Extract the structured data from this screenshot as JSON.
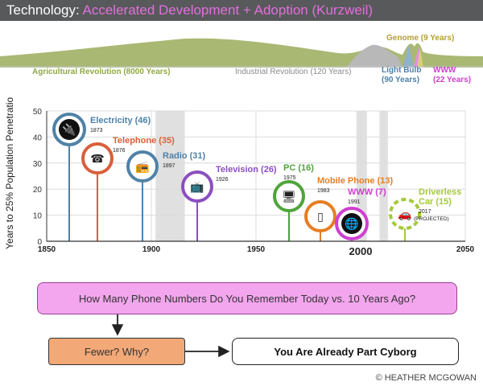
{
  "header": {
    "title_prefix": "Technology: ",
    "title_main": "Accelerated Development + Adoption (Kurzweil)"
  },
  "eras": {
    "agricultural": "Agricultural Revolution (8000 Years)",
    "industrial": "Industrial Revolution (120 Years)",
    "genome": "Genome (9 Years)",
    "lightbulb_line1": "Light Bulb",
    "lightbulb_line2": "(90 Years)",
    "www_line1": "WWW",
    "www_line2": "(22 Years)"
  },
  "colors": {
    "header_bg": "#58595b",
    "title_accent": "#e16fdc",
    "agri": "#8fa846",
    "industrial": "#8a8a8a",
    "genome": "#b5a132",
    "lightbulb": "#4f82a7",
    "www": "#cf3fcf",
    "mountain": "#a9b873"
  },
  "chart_data": {
    "type": "scatter",
    "ylabel": "Years to 25% Population Penetration",
    "xlim": [
      1850,
      2050
    ],
    "ylim": [
      0,
      50
    ],
    "x_ticks": [
      "1850",
      "1900",
      "1950",
      "2000",
      "2050"
    ],
    "y_ticks": [
      "0",
      "10",
      "20",
      "30",
      "40",
      "50"
    ],
    "grid": true,
    "points": [
      {
        "name": "Electricity",
        "value_label": "(46)",
        "year": "1873",
        "x": 1873,
        "y": 46,
        "color": "#4f82a7",
        "icon": "plug-icon"
      },
      {
        "name": "Telephone",
        "value_label": "(35)",
        "year": "1876",
        "x": 1876,
        "y": 35,
        "color": "#d95f3b",
        "icon": "phone-icon"
      },
      {
        "name": "Radio",
        "value_label": "(31)",
        "year": "1897",
        "x": 1897,
        "y": 31,
        "color": "#4f82a7",
        "icon": "radio-icon"
      },
      {
        "name": "Television",
        "value_label": "(26)",
        "year": "1926",
        "x": 1926,
        "y": 26,
        "color": "#8b4fbf",
        "icon": "tv-icon"
      },
      {
        "name": "PC",
        "value_label": "(16)",
        "year": "1975",
        "x": 1975,
        "y": 16,
        "color": "#4fa53a",
        "icon": "computer-icon"
      },
      {
        "name": "Mobile Phone",
        "value_label": "(13)",
        "year": "1983",
        "x": 1983,
        "y": 13,
        "color": "#e67e22",
        "icon": "mobile-phone-icon"
      },
      {
        "name": "WWW",
        "value_label": "(7)",
        "year": "1991",
        "x": 1991,
        "y": 7,
        "color": "#cf3fcf",
        "icon": "globe-icon"
      },
      {
        "name": "Driverless",
        "name2": "Car",
        "value_label": "(15)",
        "year": "2017",
        "note": "(PROJECTED)",
        "x": 2017,
        "y": 15,
        "color": "#a5c93a",
        "icon": "car-icon",
        "projected": true
      }
    ]
  },
  "flow": {
    "question": "How Many Phone Numbers Do You Remember Today vs. 10 Years Ago?",
    "fewer": "Fewer? Why?",
    "cyborg": "You Are Already Part Cyborg"
  },
  "copyright": "© HEATHER MCGOWAN"
}
